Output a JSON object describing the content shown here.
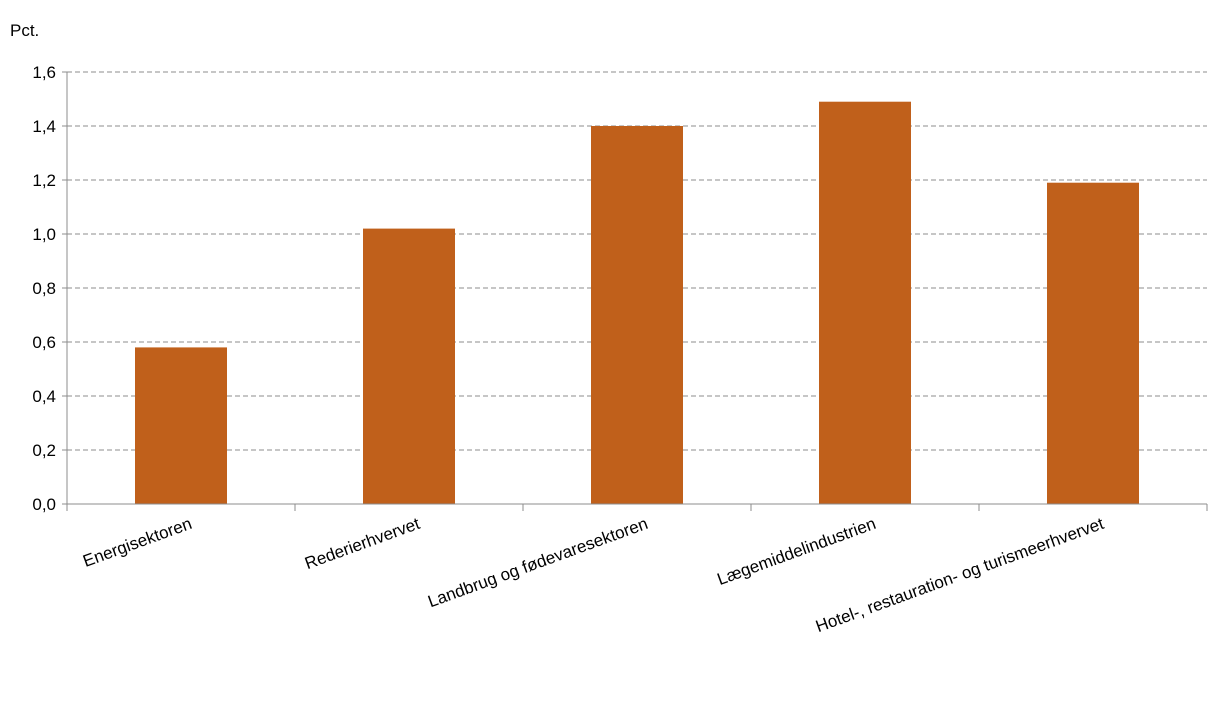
{
  "chart_data": {
    "type": "bar",
    "unit_label": "Pct.",
    "categories": [
      "Energisektoren",
      "Rederierhvervet",
      "Landbrug og fødevaresektoren",
      "Lægemiddelindustrien",
      "Hotel-, restauration- og turismeerhvervet"
    ],
    "values": [
      0.58,
      1.02,
      1.4,
      1.49,
      1.19
    ],
    "ylim": [
      0,
      1.6
    ],
    "yticks": [
      "0,0",
      "0,2",
      "0,4",
      "0,6",
      "0,8",
      "1,0",
      "1,2",
      "1,4",
      "1,6"
    ],
    "grid": true,
    "grid_style": "dashed",
    "bar_color": "#C0601B",
    "grid_color": "#8C8C8C",
    "axis_color": "#8C8C8C"
  }
}
